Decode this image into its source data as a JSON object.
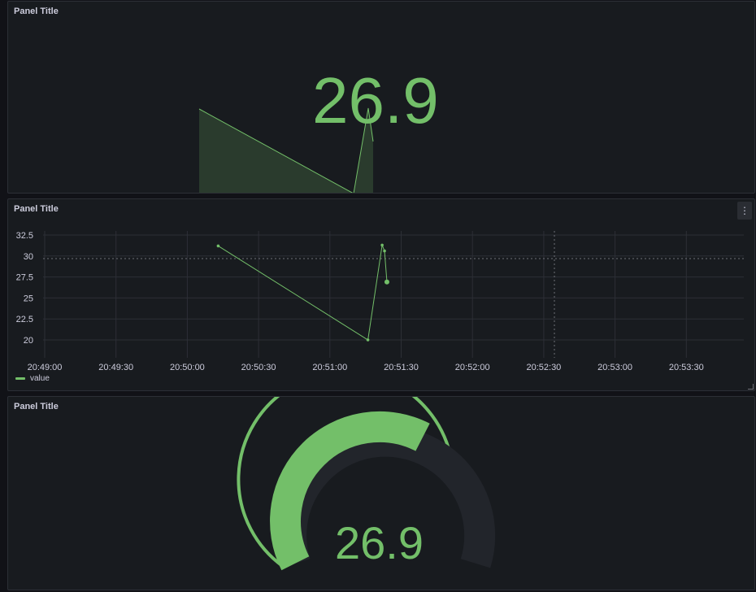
{
  "panels": {
    "stat": {
      "title": "Panel Title",
      "value": "26.9"
    },
    "timeseries": {
      "title": "Panel Title",
      "legend_label": "value",
      "menu_icon": "vertical-ellipsis-icon"
    },
    "gauge": {
      "title": "Panel Title",
      "value": "26.9"
    }
  },
  "colors": {
    "background": "#111217",
    "panel": "#181b1f",
    "border": "#2c2f36",
    "text": "#ccccdc",
    "green": "#73bf69",
    "orange": "#eab839",
    "red": "#f2495c",
    "gauge_track": "#22252b"
  },
  "chart_data": [
    {
      "type": "area",
      "title": "",
      "series": [
        {
          "name": "value",
          "x": [
            "20:50:13",
            "20:51:16",
            "20:51:22",
            "20:51:24"
          ],
          "values": [
            31.2,
            20.0,
            31.3,
            26.9
          ]
        }
      ]
    },
    {
      "type": "line",
      "title": "",
      "xlabel": "",
      "ylabel": "",
      "x_ticks": [
        "20:49:00",
        "20:49:30",
        "20:50:00",
        "20:50:30",
        "20:51:00",
        "20:51:30",
        "20:52:00",
        "20:52:30",
        "20:53:00",
        "20:53:30"
      ],
      "y_ticks": [
        "20",
        "22.5",
        "25",
        "27.5",
        "30",
        "32.5"
      ],
      "ylim": [
        20,
        32.5
      ],
      "grid": true,
      "legend": "bottom-left",
      "threshold": 30,
      "series": [
        {
          "name": "value",
          "x": [
            "20:50:13",
            "20:51:16",
            "20:51:22",
            "20:51:23",
            "20:51:24"
          ],
          "values": [
            31.2,
            20.0,
            31.3,
            30.6,
            26.9
          ]
        }
      ]
    },
    {
      "type": "gauge",
      "title": "",
      "value": 26.9,
      "min": 0,
      "max": 100,
      "thresholds": [
        {
          "color": "#73bf69",
          "from": 0
        },
        {
          "color": "#eab839",
          "from": 80
        },
        {
          "color": "#f2495c",
          "from": 96
        }
      ]
    }
  ]
}
